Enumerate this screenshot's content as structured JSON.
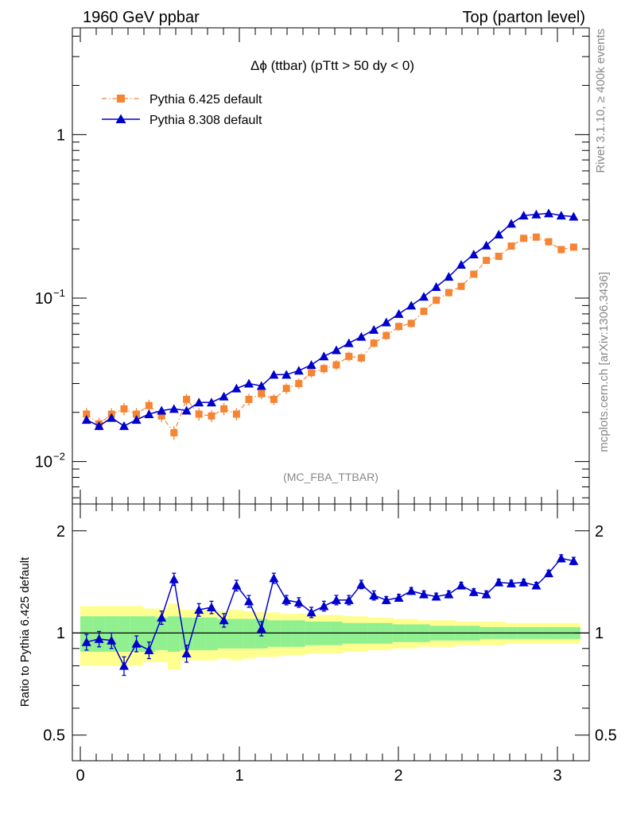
{
  "header": {
    "left": "1960 GeV ppbar",
    "right": "Top (parton level)"
  },
  "side": {
    "rivet": "Rivet 3.1.10, ≥ 400k events",
    "mcplots": "mcplots.cern.ch [arXiv:1306.3436]"
  },
  "colors": {
    "pythia6": "#f58433",
    "pythia8": "#0000cc",
    "band_inner": "#90f090",
    "band_outer": "#ffff90"
  },
  "chart_data": [
    {
      "type": "line",
      "title": "Δϕ (ttbar) (pTtt > 50 dy < 0)",
      "watermark": "(MC_FBA_TTBAR)",
      "yscale": "log",
      "xlim": [
        -0.05,
        3.2
      ],
      "ylim": [
        0.0055,
        4.5
      ],
      "yticks": [
        {
          "v": 1,
          "label": "1"
        },
        {
          "v": 0.1,
          "label": "10",
          "exp": "−1"
        },
        {
          "v": 0.01,
          "label": "10",
          "exp": "−2"
        }
      ],
      "legend_position": "top-left",
      "series": [
        {
          "name": "Pythia 6.425 default",
          "marker": "square",
          "x": [
            0.039,
            0.118,
            0.196,
            0.275,
            0.353,
            0.432,
            0.511,
            0.589,
            0.668,
            0.746,
            0.825,
            0.903,
            0.982,
            1.06,
            1.139,
            1.217,
            1.296,
            1.374,
            1.453,
            1.532,
            1.61,
            1.689,
            1.767,
            1.846,
            1.924,
            2.003,
            2.081,
            2.16,
            2.238,
            2.317,
            2.395,
            2.474,
            2.553,
            2.631,
            2.71,
            2.788,
            2.867,
            2.945,
            3.024,
            3.102
          ],
          "values": [
            0.0195,
            0.017,
            0.0195,
            0.021,
            0.0195,
            0.022,
            0.019,
            0.015,
            0.024,
            0.0195,
            0.019,
            0.021,
            0.0195,
            0.024,
            0.026,
            0.024,
            0.028,
            0.03,
            0.035,
            0.037,
            0.039,
            0.044,
            0.043,
            0.053,
            0.059,
            0.067,
            0.07,
            0.083,
            0.097,
            0.108,
            0.118,
            0.14,
            0.17,
            0.18,
            0.208,
            0.232,
            0.236,
            0.221,
            0.198,
            0.205
          ],
          "errors": [
            0.0015,
            0.0013,
            0.0015,
            0.0016,
            0.0015,
            0.0016,
            0.0014,
            0.0013,
            0.0017,
            0.0015,
            0.0014,
            0.0016,
            0.0015,
            0.0017,
            0.0017,
            0.0016,
            0.0018,
            0.0019,
            0.0021,
            0.0022,
            0.0022,
            0.0024,
            0.0024,
            0.0027,
            0.0029,
            0.0031,
            0.0032,
            0.0036,
            0.004,
            0.0043,
            0.0045,
            0.0051,
            0.0057,
            0.006,
            0.0066,
            0.0071,
            0.0072,
            0.0069,
            0.0065,
            0.0066
          ]
        },
        {
          "name": "Pythia 8.308 default",
          "marker": "triangle",
          "x": [
            0.039,
            0.118,
            0.196,
            0.275,
            0.353,
            0.432,
            0.511,
            0.589,
            0.668,
            0.746,
            0.825,
            0.903,
            0.982,
            1.06,
            1.139,
            1.217,
            1.296,
            1.374,
            1.453,
            1.532,
            1.61,
            1.689,
            1.767,
            1.846,
            1.924,
            2.003,
            2.081,
            2.16,
            2.238,
            2.317,
            2.395,
            2.474,
            2.553,
            2.631,
            2.71,
            2.788,
            2.867,
            2.945,
            3.024,
            3.102
          ],
          "values": [
            0.018,
            0.0165,
            0.0185,
            0.0165,
            0.018,
            0.0195,
            0.0205,
            0.021,
            0.0205,
            0.023,
            0.023,
            0.025,
            0.028,
            0.03,
            0.029,
            0.034,
            0.034,
            0.036,
            0.039,
            0.044,
            0.048,
            0.053,
            0.058,
            0.064,
            0.071,
            0.08,
            0.09,
            0.102,
            0.117,
            0.135,
            0.16,
            0.185,
            0.21,
            0.245,
            0.285,
            0.32,
            0.325,
            0.33,
            0.32,
            0.315
          ]
        }
      ]
    },
    {
      "type": "line",
      "ylabel": "Ratio to Pythia 6.425 default",
      "xlim": [
        -0.05,
        3.2
      ],
      "ylim": [
        0.42,
        2.4
      ],
      "xticks": [
        0,
        1,
        2,
        3
      ],
      "yticks": [
        0.5,
        1,
        2
      ],
      "reference_line": 1,
      "series": [
        {
          "name": "Pythia 8.308 default",
          "x": [
            0.039,
            0.118,
            0.196,
            0.275,
            0.353,
            0.432,
            0.511,
            0.589,
            0.668,
            0.746,
            0.825,
            0.903,
            0.982,
            1.06,
            1.139,
            1.217,
            1.296,
            1.374,
            1.453,
            1.532,
            1.61,
            1.689,
            1.767,
            1.846,
            1.924,
            2.003,
            2.081,
            2.16,
            2.238,
            2.317,
            2.395,
            2.474,
            2.553,
            2.631,
            2.71,
            2.788,
            2.867,
            2.945,
            3.024,
            3.102
          ],
          "values": [
            0.94,
            0.96,
            0.95,
            0.8,
            0.93,
            0.89,
            1.11,
            1.44,
            0.87,
            1.17,
            1.19,
            1.09,
            1.38,
            1.24,
            1.03,
            1.45,
            1.25,
            1.23,
            1.15,
            1.2,
            1.25,
            1.25,
            1.39,
            1.29,
            1.25,
            1.27,
            1.33,
            1.3,
            1.28,
            1.3,
            1.38,
            1.32,
            1.3,
            1.41,
            1.4,
            1.41,
            1.38,
            1.5,
            1.66,
            1.63
          ],
          "errors": [
            0.05,
            0.05,
            0.05,
            0.05,
            0.05,
            0.05,
            0.05,
            0.06,
            0.05,
            0.05,
            0.05,
            0.05,
            0.05,
            0.05,
            0.05,
            0.05,
            0.04,
            0.04,
            0.04,
            0.04,
            0.04,
            0.04,
            0.04,
            0.04,
            0.03,
            0.03,
            0.03,
            0.03,
            0.03,
            0.03,
            0.03,
            0.03,
            0.03,
            0.03,
            0.03,
            0.03,
            0.03,
            0.03,
            0.04,
            0.04
          ]
        }
      ],
      "band_inner": [
        0.12,
        0.12,
        0.12,
        0.12,
        0.12,
        0.12,
        0.11,
        0.12,
        0.11,
        0.11,
        0.11,
        0.1,
        0.1,
        0.1,
        0.1,
        0.09,
        0.09,
        0.09,
        0.08,
        0.08,
        0.08,
        0.07,
        0.07,
        0.07,
        0.07,
        0.06,
        0.06,
        0.06,
        0.05,
        0.05,
        0.05,
        0.05,
        0.04,
        0.04,
        0.04,
        0.04,
        0.04,
        0.04,
        0.04,
        0.04
      ],
      "band_outer": [
        0.2,
        0.2,
        0.2,
        0.2,
        0.2,
        0.18,
        0.18,
        0.22,
        0.17,
        0.17,
        0.17,
        0.16,
        0.17,
        0.16,
        0.15,
        0.15,
        0.14,
        0.14,
        0.13,
        0.13,
        0.13,
        0.12,
        0.12,
        0.11,
        0.11,
        0.1,
        0.1,
        0.09,
        0.09,
        0.09,
        0.08,
        0.08,
        0.08,
        0.08,
        0.07,
        0.07,
        0.07,
        0.07,
        0.07,
        0.07
      ]
    }
  ]
}
